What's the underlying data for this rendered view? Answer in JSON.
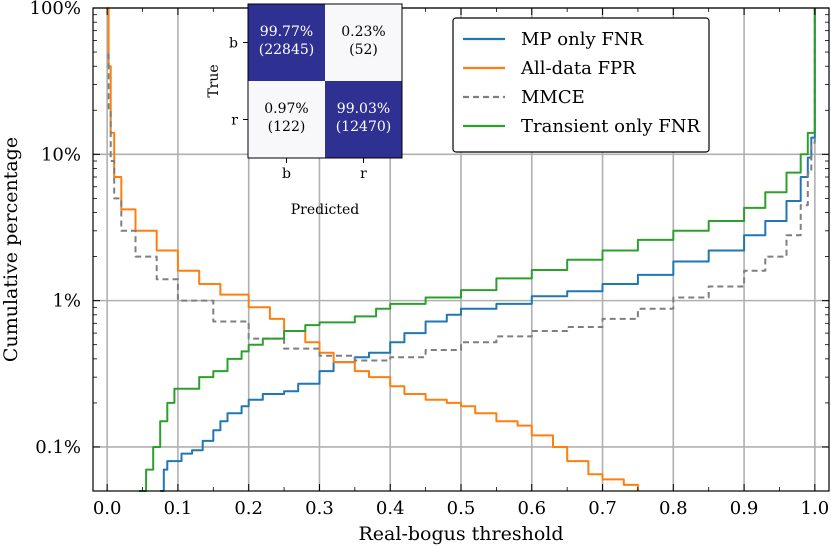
{
  "chart_data": {
    "type": "line",
    "xlabel": "Real-bogus threshold",
    "ylabel": "Cumulative percentage",
    "xlim": [
      -0.02,
      1.02
    ],
    "ylim": [
      0.05,
      100
    ],
    "yscale": "log",
    "grid": true,
    "legend_position": "top-right",
    "xticks": [
      "0.0",
      "0.1",
      "0.2",
      "0.3",
      "0.4",
      "0.5",
      "0.6",
      "0.7",
      "0.8",
      "0.9",
      "1.0"
    ],
    "xtick_values": [
      0.0,
      0.1,
      0.2,
      0.3,
      0.4,
      0.5,
      0.6,
      0.7,
      0.8,
      0.9,
      1.0
    ],
    "yticks": [
      "0.1%",
      "1%",
      "10%",
      "100%"
    ],
    "ytick_values": [
      0.1,
      1,
      10,
      100
    ],
    "series": [
      {
        "name": "MP only FNR",
        "color": "#1f77b4",
        "dash": "",
        "points": [
          [
            0.075,
            0.05
          ],
          [
            0.08,
            0.07
          ],
          [
            0.085,
            0.08
          ],
          [
            0.1,
            0.08
          ],
          [
            0.105,
            0.09
          ],
          [
            0.12,
            0.095
          ],
          [
            0.135,
            0.11
          ],
          [
            0.15,
            0.13
          ],
          [
            0.16,
            0.15
          ],
          [
            0.17,
            0.17
          ],
          [
            0.19,
            0.19
          ],
          [
            0.2,
            0.21
          ],
          [
            0.21,
            0.21
          ],
          [
            0.22,
            0.23
          ],
          [
            0.25,
            0.24
          ],
          [
            0.27,
            0.27
          ],
          [
            0.3,
            0.33
          ],
          [
            0.32,
            0.38
          ],
          [
            0.35,
            0.41
          ],
          [
            0.37,
            0.44
          ],
          [
            0.4,
            0.52
          ],
          [
            0.42,
            0.6
          ],
          [
            0.45,
            0.72
          ],
          [
            0.48,
            0.8
          ],
          [
            0.5,
            0.88
          ],
          [
            0.55,
            0.95
          ],
          [
            0.6,
            1.07
          ],
          [
            0.65,
            1.16
          ],
          [
            0.7,
            1.3
          ],
          [
            0.75,
            1.5
          ],
          [
            0.8,
            1.85
          ],
          [
            0.85,
            2.2
          ],
          [
            0.9,
            2.8
          ],
          [
            0.93,
            3.5
          ],
          [
            0.96,
            4.8
          ],
          [
            0.98,
            7.0
          ],
          [
            0.99,
            9.5
          ],
          [
            0.995,
            13.0
          ],
          [
            1.0,
            100
          ]
        ]
      },
      {
        "name": "All-data FPR",
        "color": "#ff7f0e",
        "dash": "",
        "points": [
          [
            0.0,
            100
          ],
          [
            0.002,
            40
          ],
          [
            0.005,
            14
          ],
          [
            0.01,
            7.0
          ],
          [
            0.02,
            4.2
          ],
          [
            0.04,
            3.0
          ],
          [
            0.07,
            2.2
          ],
          [
            0.1,
            1.6
          ],
          [
            0.13,
            1.3
          ],
          [
            0.16,
            1.1
          ],
          [
            0.2,
            0.9
          ],
          [
            0.23,
            0.75
          ],
          [
            0.25,
            0.62
          ],
          [
            0.28,
            0.52
          ],
          [
            0.3,
            0.44
          ],
          [
            0.32,
            0.38
          ],
          [
            0.35,
            0.33
          ],
          [
            0.37,
            0.3
          ],
          [
            0.4,
            0.26
          ],
          [
            0.42,
            0.23
          ],
          [
            0.45,
            0.21
          ],
          [
            0.48,
            0.2
          ],
          [
            0.5,
            0.19
          ],
          [
            0.52,
            0.17
          ],
          [
            0.55,
            0.15
          ],
          [
            0.58,
            0.14
          ],
          [
            0.6,
            0.12
          ],
          [
            0.63,
            0.1
          ],
          [
            0.65,
            0.08
          ],
          [
            0.68,
            0.065
          ],
          [
            0.7,
            0.06
          ],
          [
            0.73,
            0.055
          ],
          [
            0.75,
            0.05
          ]
        ]
      },
      {
        "name": "MMCE",
        "color": "#7f7f7f",
        "dash": "6 4",
        "points": [
          [
            0.0,
            48
          ],
          [
            0.002,
            20
          ],
          [
            0.005,
            9.0
          ],
          [
            0.01,
            5.0
          ],
          [
            0.02,
            3.0
          ],
          [
            0.04,
            2.0
          ],
          [
            0.07,
            1.4
          ],
          [
            0.1,
            1.0
          ],
          [
            0.15,
            0.72
          ],
          [
            0.2,
            0.55
          ],
          [
            0.25,
            0.47
          ],
          [
            0.3,
            0.42
          ],
          [
            0.35,
            0.39
          ],
          [
            0.4,
            0.41
          ],
          [
            0.45,
            0.46
          ],
          [
            0.5,
            0.52
          ],
          [
            0.55,
            0.57
          ],
          [
            0.6,
            0.62
          ],
          [
            0.65,
            0.66
          ],
          [
            0.7,
            0.75
          ],
          [
            0.75,
            0.88
          ],
          [
            0.8,
            1.05
          ],
          [
            0.85,
            1.25
          ],
          [
            0.9,
            1.6
          ],
          [
            0.93,
            2.0
          ],
          [
            0.96,
            2.8
          ],
          [
            0.98,
            4.5
          ],
          [
            0.99,
            7.5
          ],
          [
            0.995,
            12
          ],
          [
            1.0,
            100
          ]
        ]
      },
      {
        "name": "Transient only FNR",
        "color": "#2ca02c",
        "dash": "",
        "points": [
          [
            0.045,
            0.05
          ],
          [
            0.055,
            0.07
          ],
          [
            0.065,
            0.1
          ],
          [
            0.075,
            0.15
          ],
          [
            0.085,
            0.2
          ],
          [
            0.095,
            0.25
          ],
          [
            0.12,
            0.25
          ],
          [
            0.13,
            0.3
          ],
          [
            0.15,
            0.33
          ],
          [
            0.17,
            0.4
          ],
          [
            0.19,
            0.45
          ],
          [
            0.2,
            0.5
          ],
          [
            0.22,
            0.55
          ],
          [
            0.25,
            0.62
          ],
          [
            0.28,
            0.68
          ],
          [
            0.3,
            0.71
          ],
          [
            0.35,
            0.78
          ],
          [
            0.38,
            0.88
          ],
          [
            0.4,
            0.95
          ],
          [
            0.45,
            1.05
          ],
          [
            0.5,
            1.18
          ],
          [
            0.55,
            1.42
          ],
          [
            0.6,
            1.62
          ],
          [
            0.65,
            1.9
          ],
          [
            0.7,
            2.2
          ],
          [
            0.75,
            2.6
          ],
          [
            0.8,
            3.0
          ],
          [
            0.85,
            3.5
          ],
          [
            0.9,
            4.3
          ],
          [
            0.93,
            5.5
          ],
          [
            0.96,
            7.5
          ],
          [
            0.98,
            10
          ],
          [
            0.99,
            14
          ],
          [
            1.0,
            100
          ]
        ]
      }
    ]
  },
  "confusion_matrix": {
    "xlabel": "Predicted",
    "ylabel": "True",
    "row_labels": [
      "b",
      "r"
    ],
    "col_labels": [
      "b",
      "r"
    ],
    "cells": [
      [
        {
          "pct": "99.77%",
          "count": "(22845)",
          "dark": true
        },
        {
          "pct": "0.23%",
          "count": "(52)",
          "dark": false
        }
      ],
      [
        {
          "pct": "0.97%",
          "count": "(122)",
          "dark": false
        },
        {
          "pct": "99.03%",
          "count": "(12470)",
          "dark": true
        }
      ]
    ],
    "dark_color": "#2e3192",
    "light_color": "#f8f8fb"
  }
}
